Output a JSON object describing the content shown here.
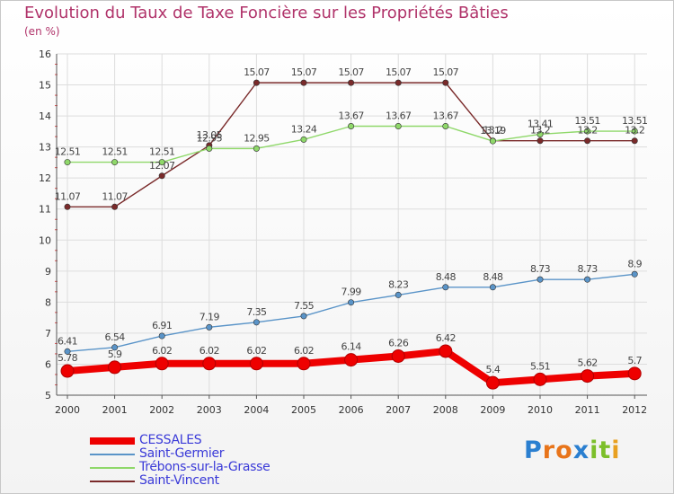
{
  "title": "Evolution du Taux de Taxe Foncière sur les Propriétés Bâties",
  "unit": "(en %)",
  "logo": {
    "letters": [
      "P",
      "r",
      "o",
      "x",
      "i",
      "t",
      "i"
    ],
    "colors": [
      "#2a7fd0",
      "#e8741a",
      "#e8741a",
      "#2a7fd0",
      "#7cbf2a",
      "#7cbf2a",
      "#e8a020"
    ]
  },
  "chart_data": {
    "type": "line",
    "title": "Evolution du Taux de Taxe Foncière sur les Propriétés Bâties",
    "ylabel": "(en %)",
    "xlabel": "",
    "ylim": [
      5,
      16
    ],
    "yticks": [
      "5",
      "6",
      "7",
      "8",
      "9",
      "10",
      "11",
      "12",
      "13",
      "14",
      "15",
      "16"
    ],
    "x": [
      "2000",
      "2001",
      "2002",
      "2003",
      "2004",
      "2005",
      "2006",
      "2007",
      "2008",
      "2009",
      "2010",
      "2011",
      "2012"
    ],
    "series": [
      {
        "name": "CESSALES",
        "color": "#ee0000",
        "width": 8,
        "marker": 7,
        "values": [
          5.78,
          5.9,
          6.02,
          6.02,
          6.02,
          6.02,
          6.14,
          6.26,
          6.42,
          5.4,
          5.51,
          5.62,
          5.7
        ],
        "labels": [
          "5.78",
          "5.9",
          "6.02",
          "6.02",
          "6.02",
          "6.02",
          "6.14",
          "6.26",
          "6.42",
          "5.4",
          "5.51",
          "5.62",
          "5.7"
        ]
      },
      {
        "name": "Saint-Germier",
        "color": "#5a94c8",
        "width": 1.4,
        "marker": 3.2,
        "values": [
          6.41,
          6.54,
          6.91,
          7.19,
          7.35,
          7.55,
          7.99,
          8.23,
          8.48,
          8.48,
          8.73,
          8.73,
          8.9
        ],
        "labels": [
          "6.41",
          "6.54",
          "6.91",
          "7.19",
          "7.35",
          "7.55",
          "7.99",
          "8.23",
          "8.48",
          "8.48",
          "8.73",
          "8.73",
          "8.9"
        ]
      },
      {
        "name": "Trébons-sur-la-Grasse",
        "color": "#8fd86a",
        "width": 1.4,
        "marker": 3.2,
        "values": [
          12.51,
          12.51,
          12.51,
          12.95,
          12.95,
          13.24,
          13.67,
          13.67,
          13.67,
          13.19,
          13.41,
          13.51,
          13.51
        ],
        "labels": [
          "12.51",
          "12.51",
          "12.51",
          "12.95",
          "12.95",
          "13.24",
          "13.67",
          "13.67",
          "13.67",
          "13.19",
          "13.41",
          "13.51",
          "13.51"
        ]
      },
      {
        "name": "Saint-Vincent",
        "color": "#7a2a2a",
        "width": 1.4,
        "marker": 3.2,
        "values": [
          11.07,
          11.07,
          12.07,
          13.05,
          15.07,
          15.07,
          15.07,
          15.07,
          15.07,
          13.2,
          13.2,
          13.2,
          13.2
        ],
        "labels": [
          "11.07",
          "11.07",
          "12.07",
          "13.05",
          "15.07",
          "15.07",
          "15.07",
          "15.07",
          "15.07",
          "13.2",
          "13.2",
          "13.2",
          "13.2"
        ]
      }
    ],
    "legend": [
      "CESSALES",
      "Saint-Germier",
      "Trébons-sur-la-Grasse",
      "Saint-Vincent"
    ]
  }
}
